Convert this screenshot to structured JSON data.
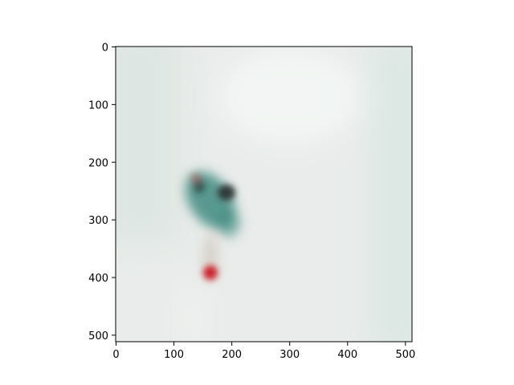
{
  "chart_data": {
    "type": "heatmap",
    "title": "",
    "xlabel": "",
    "ylabel": "",
    "xlim": [
      0,
      512
    ],
    "ylim": [
      512,
      0
    ],
    "x_ticks": [
      0,
      100,
      200,
      300,
      400,
      500
    ],
    "y_ticks": [
      0,
      100,
      200,
      300,
      400,
      500
    ],
    "grid": false,
    "legend": "none",
    "image_content": {
      "background_color": "#e9ecea",
      "left_tint_color": "#d3e2dd",
      "right_tint_color": "#d6e6e1",
      "object_dark_color": "#2a2e2b",
      "object_teal_color": "#3f8a80",
      "object_red_color": "#c8141c"
    }
  }
}
